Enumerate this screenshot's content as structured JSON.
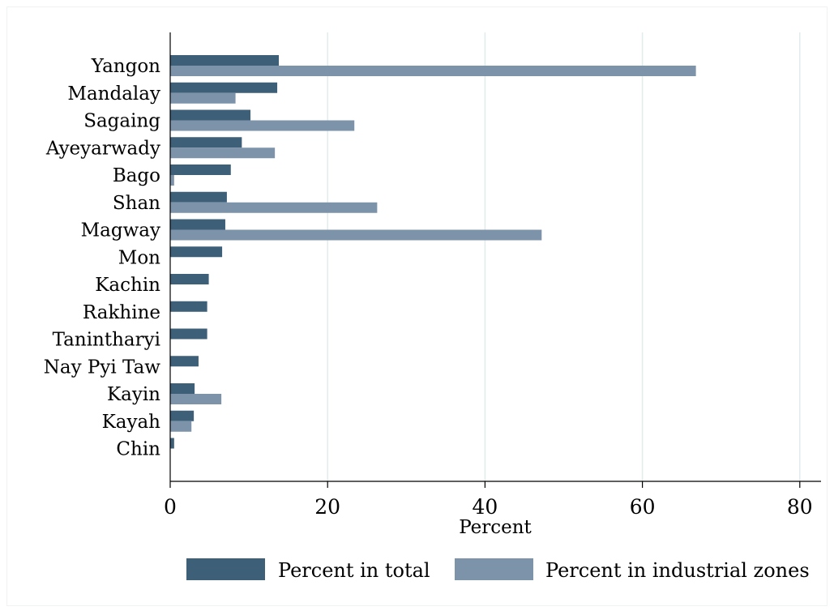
{
  "chart_data": {
    "type": "bar",
    "orientation": "horizontal",
    "categories": [
      "Yangon",
      "Mandalay",
      "Sagaing",
      "Ayeyarwady",
      "Bago",
      "Shan",
      "Magway",
      "Mon",
      "Kachin",
      "Rakhine",
      "Tanintharyi",
      "Nay Pyi Taw",
      "Kayin",
      "Kayah",
      "Chin"
    ],
    "series": [
      {
        "name": "Percent in total",
        "color": "#3e5f78",
        "values": [
          13.8,
          13.6,
          10.2,
          9.1,
          7.7,
          7.2,
          7.0,
          6.6,
          4.9,
          4.7,
          4.7,
          3.6,
          3.1,
          3.0,
          0.5
        ]
      },
      {
        "name": "Percent in industrial zones",
        "color": "#7d93aa",
        "values": [
          66.8,
          8.3,
          23.4,
          13.3,
          0.5,
          26.3,
          47.2,
          0,
          0,
          0,
          0,
          0,
          6.5,
          2.7,
          0
        ]
      }
    ],
    "xlabel": "Percent",
    "ylabel": "",
    "title": "",
    "xlim": [
      0,
      82.7
    ],
    "xticks": [
      "0",
      "20",
      "40",
      "60",
      "80"
    ],
    "grid": "vertical",
    "legend_position": "bottom"
  }
}
